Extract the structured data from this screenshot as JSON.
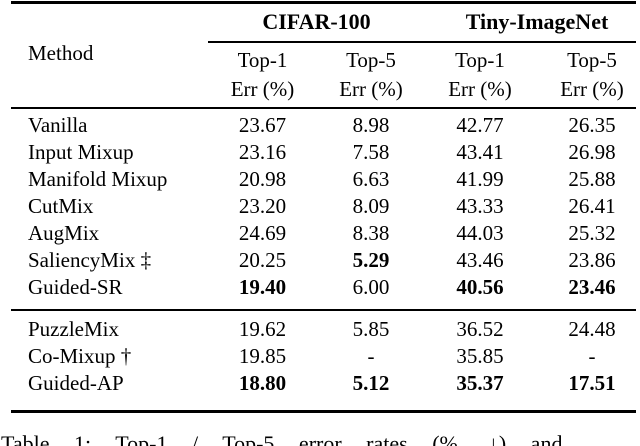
{
  "table": {
    "header": {
      "method_label": "Method",
      "group1": "CIFAR-100",
      "group2": "Tiny-ImageNet",
      "col1_line1": "Top-1",
      "col1_line2": "Err (%)",
      "col2_line1": "Top-5",
      "col2_line2": "Err (%)",
      "col3_line1": "Top-1",
      "col3_line2": "Err (%)",
      "col4_line1": "Top-5",
      "col4_line2": "Err (%)"
    },
    "block1": [
      {
        "method": "Vanilla",
        "c1": "23.67",
        "c2": "8.98",
        "c3": "42.77",
        "c4": "26.35"
      },
      {
        "method": "Input Mixup",
        "c1": "23.16",
        "c2": "7.58",
        "c3": "43.41",
        "c4": "26.98"
      },
      {
        "method": "Manifold Mixup",
        "c1": "20.98",
        "c2": "6.63",
        "c3": "41.99",
        "c4": "25.88"
      },
      {
        "method": "CutMix",
        "c1": "23.20",
        "c2": "8.09",
        "c3": "43.33",
        "c4": "26.41"
      },
      {
        "method": "AugMix",
        "c1": "24.69",
        "c2": "8.38",
        "c3": "44.03",
        "c4": "25.32"
      },
      {
        "method": "SaliencyMix ‡",
        "c1": "20.25",
        "c2": "5.29",
        "c3": "43.46",
        "c4": "23.86"
      },
      {
        "method": "Guided-SR",
        "c1": "19.40",
        "c2": "6.00",
        "c3": "40.56",
        "c4": "23.46"
      }
    ],
    "block2": [
      {
        "method": "PuzzleMix",
        "c1": "19.62",
        "c2": "5.85",
        "c3": "36.52",
        "c4": "24.48"
      },
      {
        "method": "Co-Mixup †",
        "c1": "19.85",
        "c2": "-",
        "c3": "35.85",
        "c4": "-"
      },
      {
        "method": "Guided-AP",
        "c1": "18.80",
        "c2": "5.12",
        "c3": "35.37",
        "c4": "17.51"
      }
    ]
  },
  "caption": {
    "text": "Table 1: Top-1 / Top-5 error rates (%, ↓) and"
  }
}
